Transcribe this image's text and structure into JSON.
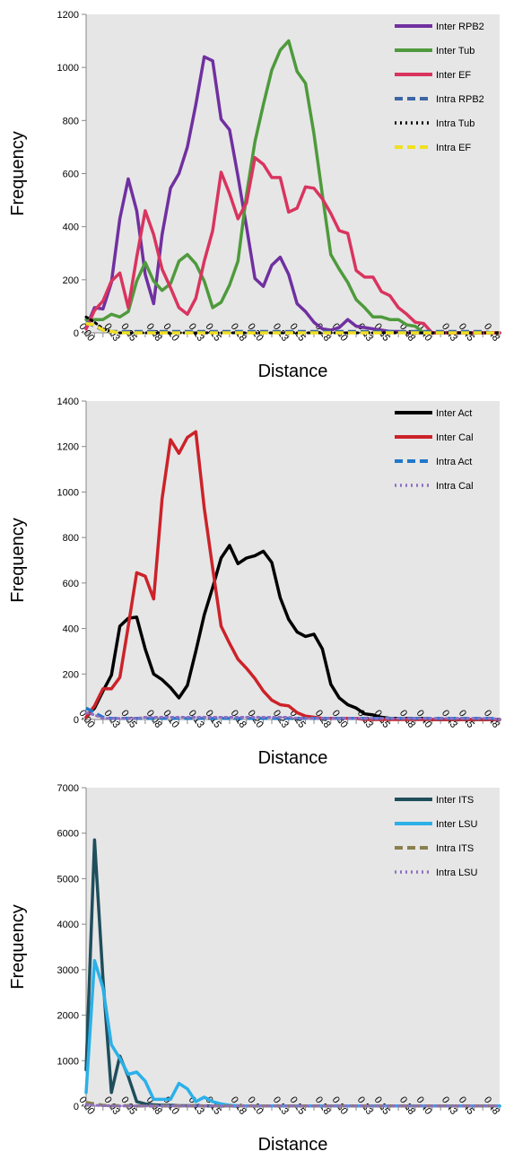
{
  "chart_data": [
    {
      "type": "line",
      "xlabel": "Distance",
      "ylabel": "Frequency",
      "ylim": [
        0,
        1200
      ],
      "yticks": [
        0,
        200,
        400,
        600,
        800,
        1000,
        1200
      ],
      "x": [
        0.0,
        0.01,
        0.02,
        0.03,
        0.04,
        0.05,
        0.06,
        0.07,
        0.08,
        0.09,
        0.1,
        0.11,
        0.12,
        0.13,
        0.14,
        0.15,
        0.16,
        0.17,
        0.18,
        0.19,
        0.2,
        0.21,
        0.22,
        0.23,
        0.24,
        0.25,
        0.26,
        0.27,
        0.28,
        0.29,
        0.3,
        0.31,
        0.32,
        0.33,
        0.34,
        0.35,
        0.36,
        0.37,
        0.38,
        0.39,
        0.4,
        0.41,
        0.42,
        0.43,
        0.44,
        0.45,
        0.46,
        0.47,
        0.48,
        0.49
      ],
      "xtick_labels": [
        "0,00",
        "0,03",
        "0,05",
        "0,08",
        "0,10",
        "0,13",
        "0,15",
        "0,18",
        "0,20",
        "0,23",
        "0,25",
        "0,28",
        "0,30",
        "0,33",
        "0,35",
        "0,38",
        "0,40",
        "0,43",
        "0,45",
        "0,48"
      ],
      "xtick_index": [
        0,
        3,
        5,
        8,
        10,
        13,
        15,
        18,
        20,
        23,
        25,
        28,
        30,
        33,
        35,
        38,
        40,
        43,
        45,
        48
      ],
      "legend": "top-right",
      "grid": false,
      "series": [
        {
          "name": "Inter RPB2",
          "color": "#7030a0",
          "dash": "solid",
          "values": [
            20,
            95,
            90,
            190,
            430,
            580,
            460,
            220,
            110,
            370,
            545,
            600,
            700,
            860,
            1040,
            1025,
            805,
            765,
            590,
            400,
            205,
            175,
            255,
            285,
            220,
            110,
            80,
            40,
            15,
            10,
            20,
            50,
            25,
            20,
            15,
            10,
            5,
            5,
            0,
            0,
            0,
            0,
            0,
            0,
            0,
            0,
            0,
            0,
            0,
            0
          ]
        },
        {
          "name": "Inter Tub",
          "color": "#4e9a3c",
          "dash": "solid",
          "values": [
            50,
            50,
            50,
            70,
            60,
            80,
            195,
            265,
            195,
            160,
            185,
            270,
            295,
            260,
            195,
            95,
            115,
            180,
            270,
            520,
            720,
            860,
            990,
            1065,
            1100,
            985,
            940,
            750,
            520,
            295,
            240,
            190,
            125,
            95,
            60,
            60,
            50,
            50,
            30,
            25,
            0,
            0,
            0,
            0,
            0,
            0,
            0,
            0,
            0,
            0
          ]
        },
        {
          "name": "Inter EF",
          "color": "#d9345f",
          "dash": "solid",
          "values": [
            15,
            85,
            120,
            195,
            225,
            95,
            285,
            460,
            370,
            240,
            170,
            95,
            70,
            130,
            270,
            385,
            605,
            525,
            430,
            490,
            660,
            635,
            585,
            585,
            455,
            470,
            550,
            545,
            505,
            450,
            385,
            375,
            235,
            210,
            210,
            155,
            140,
            95,
            70,
            40,
            35,
            0,
            0,
            0,
            0,
            0,
            0,
            0,
            0,
            0
          ]
        },
        {
          "name": "Intra RPB2",
          "color": "#3d66a3",
          "dash": "dash",
          "values": [
            40,
            25,
            10,
            5,
            5,
            5,
            5,
            5,
            5,
            5,
            5,
            5,
            5,
            5,
            5,
            5,
            5,
            5,
            5,
            5,
            5,
            5,
            5,
            5,
            5,
            5,
            5,
            5,
            5,
            5,
            5,
            5,
            5,
            5,
            5,
            5,
            5,
            5,
            5,
            5,
            5,
            5,
            5,
            5,
            5,
            5,
            5,
            5,
            0,
            0
          ]
        },
        {
          "name": "Intra Tub",
          "color": "#000000",
          "dash": "dot",
          "values": [
            60,
            40,
            15,
            5,
            0,
            0,
            0,
            0,
            0,
            0,
            0,
            0,
            0,
            0,
            0,
            0,
            0,
            0,
            0,
            0,
            0,
            0,
            0,
            0,
            0,
            0,
            0,
            0,
            0,
            0,
            0,
            0,
            0,
            0,
            0,
            0,
            0,
            0,
            0,
            0,
            0,
            0,
            0,
            0,
            0,
            0,
            0,
            0,
            0,
            0
          ]
        },
        {
          "name": "Intra EF",
          "color": "#f0e020",
          "dash": "dash",
          "values": [
            35,
            30,
            10,
            5,
            0,
            0,
            0,
            0,
            0,
            0,
            0,
            0,
            0,
            0,
            0,
            0,
            0,
            0,
            0,
            0,
            0,
            0,
            0,
            0,
            0,
            0,
            0,
            0,
            0,
            0,
            0,
            0,
            0,
            0,
            0,
            0,
            0,
            0,
            0,
            0,
            0,
            0,
            0,
            0,
            0,
            0,
            0,
            0,
            0,
            0
          ]
        }
      ]
    },
    {
      "type": "line",
      "xlabel": "Distance",
      "ylabel": "Frequency",
      "ylim": [
        0,
        1400
      ],
      "yticks": [
        0,
        200,
        400,
        600,
        800,
        1000,
        1200,
        1400
      ],
      "x": [
        0.0,
        0.01,
        0.02,
        0.03,
        0.04,
        0.05,
        0.06,
        0.07,
        0.08,
        0.09,
        0.1,
        0.11,
        0.12,
        0.13,
        0.14,
        0.15,
        0.16,
        0.17,
        0.18,
        0.19,
        0.2,
        0.21,
        0.22,
        0.23,
        0.24,
        0.25,
        0.26,
        0.27,
        0.28,
        0.29,
        0.3,
        0.31,
        0.32,
        0.33,
        0.34,
        0.35,
        0.36,
        0.37,
        0.38,
        0.39,
        0.4,
        0.41,
        0.42,
        0.43,
        0.44,
        0.45,
        0.46,
        0.47,
        0.48,
        0.49
      ],
      "xtick_labels": [
        "0,00",
        "0,03",
        "0,05",
        "0,08",
        "0,10",
        "0,13",
        "0,15",
        "0,18",
        "0,20",
        "0,23",
        "0,25",
        "0,28",
        "0,30",
        "0,33",
        "0,35",
        "0,38",
        "0,40",
        "0,43",
        "0,45",
        "0,48"
      ],
      "xtick_index": [
        0,
        3,
        5,
        8,
        10,
        13,
        15,
        18,
        20,
        23,
        25,
        28,
        30,
        33,
        35,
        38,
        40,
        43,
        45,
        48
      ],
      "legend": "top-right",
      "grid": false,
      "series": [
        {
          "name": "Inter Act",
          "color": "#000000",
          "dash": "solid",
          "values": [
            10,
            50,
            125,
            195,
            410,
            445,
            450,
            310,
            200,
            175,
            140,
            95,
            150,
            300,
            460,
            580,
            710,
            765,
            685,
            710,
            720,
            740,
            690,
            535,
            440,
            385,
            365,
            375,
            310,
            155,
            95,
            65,
            50,
            25,
            20,
            10,
            5,
            5,
            5,
            5,
            5,
            0,
            0,
            0,
            0,
            0,
            0,
            0,
            0,
            0
          ]
        },
        {
          "name": "Inter Cal",
          "color": "#cc2229",
          "dash": "solid",
          "values": [
            10,
            60,
            135,
            135,
            185,
            410,
            645,
            630,
            530,
            970,
            1230,
            1170,
            1240,
            1265,
            930,
            665,
            410,
            335,
            265,
            225,
            180,
            125,
            85,
            65,
            60,
            30,
            15,
            10,
            5,
            5,
            5,
            5,
            5,
            0,
            0,
            0,
            0,
            0,
            0,
            0,
            0,
            0,
            0,
            0,
            0,
            0,
            0,
            0,
            0,
            0
          ]
        },
        {
          "name": "Intra Act",
          "color": "#1f78c8",
          "dash": "dash",
          "values": [
            50,
            30,
            10,
            5,
            5,
            5,
            5,
            5,
            5,
            5,
            5,
            5,
            5,
            5,
            5,
            5,
            5,
            5,
            5,
            5,
            5,
            5,
            5,
            5,
            5,
            5,
            5,
            5,
            5,
            5,
            5,
            5,
            5,
            5,
            5,
            5,
            5,
            5,
            5,
            5,
            5,
            5,
            5,
            5,
            5,
            5,
            5,
            5,
            5,
            0
          ]
        },
        {
          "name": "Intra Cal",
          "color": "#8e6fc4",
          "dash": "dot",
          "values": [
            30,
            20,
            5,
            5,
            5,
            5,
            5,
            10,
            10,
            10,
            10,
            10,
            10,
            10,
            10,
            10,
            10,
            10,
            10,
            10,
            10,
            10,
            10,
            10,
            10,
            5,
            5,
            5,
            5,
            5,
            5,
            5,
            5,
            5,
            5,
            5,
            5,
            5,
            5,
            5,
            5,
            5,
            5,
            5,
            5,
            5,
            5,
            5,
            5,
            0
          ]
        }
      ]
    },
    {
      "type": "line",
      "xlabel": "Distance",
      "ylabel": "Frequency",
      "ylim": [
        0,
        7000
      ],
      "yticks": [
        0,
        1000,
        2000,
        3000,
        4000,
        5000,
        6000,
        7000
      ],
      "x": [
        0.0,
        0.01,
        0.02,
        0.03,
        0.04,
        0.05,
        0.06,
        0.07,
        0.08,
        0.09,
        0.1,
        0.11,
        0.12,
        0.13,
        0.14,
        0.15,
        0.16,
        0.17,
        0.18,
        0.19,
        0.2,
        0.21,
        0.22,
        0.23,
        0.24,
        0.25,
        0.26,
        0.27,
        0.28,
        0.29,
        0.3,
        0.31,
        0.32,
        0.33,
        0.34,
        0.35,
        0.36,
        0.37,
        0.38,
        0.39,
        0.4,
        0.41,
        0.42,
        0.43,
        0.44,
        0.45,
        0.46,
        0.47,
        0.48,
        0.49
      ],
      "xtick_labels": [
        "0,00",
        "0,03",
        "0,05",
        "0,08",
        "0,10",
        "0,13",
        "0,15",
        "0,18",
        "0,20",
        "0,23",
        "0,25",
        "0,28",
        "0,30",
        "0,33",
        "0,35",
        "0,38",
        "0,40",
        "0,43",
        "0,45",
        "0,48"
      ],
      "xtick_index": [
        0,
        3,
        5,
        8,
        10,
        13,
        15,
        18,
        20,
        23,
        25,
        28,
        30,
        33,
        35,
        38,
        40,
        43,
        45,
        48
      ],
      "legend": "top-right",
      "grid": false,
      "series": [
        {
          "name": "Inter ITS",
          "color": "#1f4e5c",
          "dash": "solid",
          "values": [
            800,
            5850,
            2800,
            300,
            1100,
            650,
            100,
            50,
            30,
            20,
            20,
            10,
            10,
            10,
            5,
            5,
            5,
            5,
            5,
            5,
            5,
            5,
            5,
            5,
            5,
            5,
            5,
            5,
            5,
            5,
            5,
            5,
            5,
            5,
            5,
            5,
            5,
            5,
            5,
            5,
            5,
            5,
            5,
            5,
            5,
            5,
            5,
            5,
            5,
            5
          ]
        },
        {
          "name": "Inter LSU",
          "color": "#2bb0e8",
          "dash": "solid",
          "values": [
            300,
            3200,
            2600,
            1350,
            1050,
            700,
            750,
            550,
            150,
            150,
            150,
            500,
            380,
            100,
            200,
            100,
            50,
            20,
            10,
            5,
            5,
            5,
            5,
            5,
            5,
            5,
            5,
            5,
            5,
            5,
            5,
            5,
            5,
            5,
            5,
            5,
            5,
            5,
            5,
            5,
            5,
            5,
            5,
            5,
            5,
            5,
            5,
            5,
            5,
            5
          ]
        },
        {
          "name": "Intra ITS",
          "color": "#8a7f4e",
          "dash": "dash",
          "values": [
            80,
            50,
            20,
            10,
            10,
            10,
            5,
            5,
            5,
            5,
            5,
            5,
            5,
            5,
            5,
            5,
            5,
            5,
            5,
            5,
            5,
            5,
            5,
            5,
            5,
            5,
            5,
            5,
            5,
            5,
            5,
            5,
            5,
            5,
            5,
            5,
            5,
            5,
            5,
            5,
            5,
            5,
            5,
            5,
            5,
            5,
            5,
            5,
            5,
            5
          ]
        },
        {
          "name": "Intra LSU",
          "color": "#8e6fc4",
          "dash": "dot",
          "values": [
            40,
            20,
            10,
            5,
            5,
            5,
            5,
            5,
            5,
            5,
            5,
            5,
            5,
            5,
            5,
            5,
            5,
            5,
            5,
            5,
            5,
            5,
            5,
            5,
            5,
            5,
            5,
            5,
            5,
            5,
            5,
            5,
            5,
            5,
            5,
            5,
            5,
            5,
            5,
            5,
            5,
            5,
            5,
            5,
            5,
            5,
            5,
            5,
            5,
            5
          ]
        }
      ]
    }
  ]
}
